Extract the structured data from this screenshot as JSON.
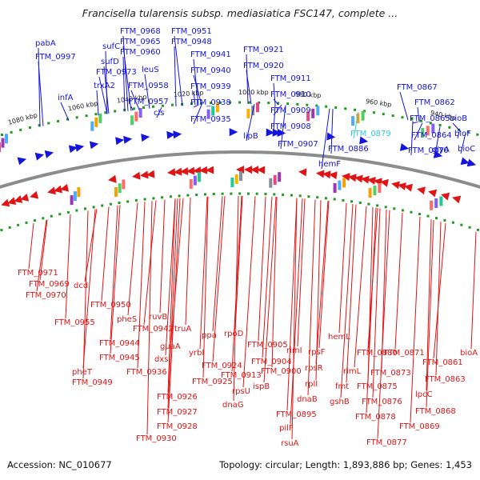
{
  "title": "Francisella tularensis subsp. mediasiatica FSC147, complete ...",
  "footer": {
    "accession": "Accession: NC_010677",
    "topology": "Topology: circular; Length: 1,893,886 bp; Genes: 1,453"
  },
  "colors": {
    "forward": "#1414e0",
    "reverse": "#e01414",
    "highlight": "#32c8e6",
    "backbone": "#8c8c8c",
    "tick": "#1e9a1e"
  },
  "kbp_labels": [
    "1080 kbp",
    "1060 kbp",
    "1040 kbp",
    "1020 kbp",
    "1000 kbp",
    "980 kbp",
    "960 kbp",
    "940 kbp"
  ],
  "top_labels": [
    "pabA",
    "FTM_0997",
    "infA",
    "sufC",
    "sufD",
    "FTM_0973",
    "trxA2",
    "FTM_0968",
    "FTM_0965",
    "FTM_0960",
    "leuS",
    "FTM_0958",
    "FTM_0957",
    "cls",
    "FTM_0951",
    "FTM_0948",
    "FTM_0941",
    "FTM_0940",
    "FTM_0939",
    "FTM_0938",
    "FTM_0935",
    "FTM_0921",
    "FTM_0920",
    "lipB",
    "FTM_0911",
    "FTM_0910",
    "FTM_0909",
    "FTM_0908",
    "FTM_0907",
    "hemF",
    "FTM_0886",
    "FTM_0879",
    "FTM_0867",
    "FTM_0862",
    "FTM_0865",
    "FTM_0864",
    "FTM_0870",
    "glyA",
    "bioB",
    "bioF",
    "bioC"
  ],
  "bottom_labels": [
    "FTM_0971",
    "FTM_0969",
    "FTM_0970",
    "dcd",
    "FTM_0955",
    "FTM_0950",
    "pheS",
    "FTM_0942",
    "ruvB",
    "FTM_0944",
    "FTM_0945",
    "pheT",
    "FTM_0949",
    "FTM_0936",
    "dxs",
    "guaA",
    "truA",
    "yrbI",
    "ppa",
    "FTM_0924",
    "FTM_0925",
    "FTM_0926",
    "FTM_0927",
    "FTM_0928",
    "FTM_0930",
    "rpoD",
    "FTM_0913",
    "rpsU",
    "dnaG",
    "FTM_0905",
    "FTM_0904",
    "ispB",
    "FTM_0900",
    "rimI",
    "rpsF",
    "rpsR",
    "rplI",
    "dnaB",
    "FTM_0895",
    "pilF",
    "rsuA",
    "hemL",
    "FTM_0880",
    "rimL",
    "FTM_0873",
    "FTM_0871",
    "fmt",
    "gshB",
    "FTM_0875",
    "FTM_0876",
    "FTM_0878",
    "FTM_0877",
    "lpcC",
    "FTM_0868",
    "FTM_0869",
    "FTM_0861",
    "FTM_0863",
    "bioA"
  ]
}
